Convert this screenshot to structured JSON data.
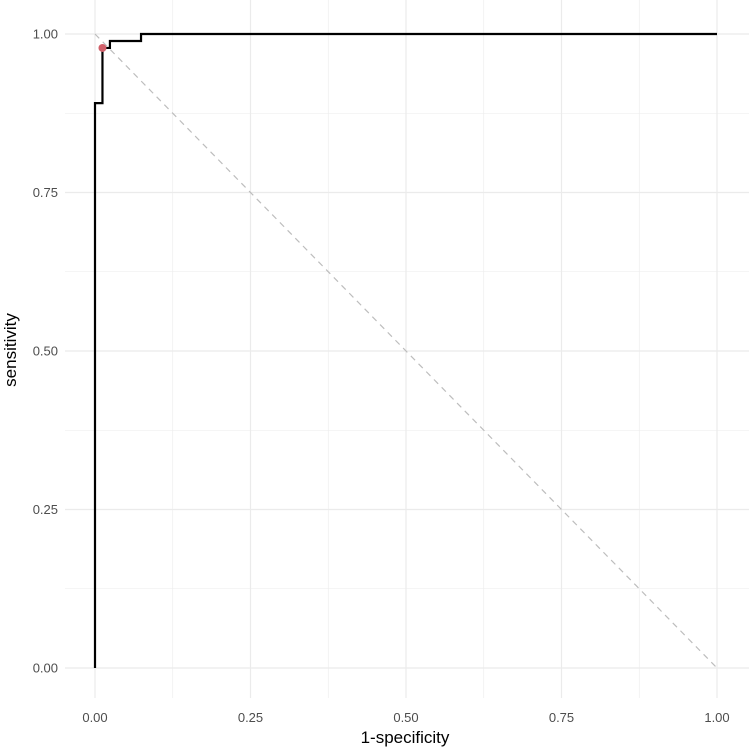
{
  "chart_data": {
    "type": "line",
    "title": "",
    "xlabel": "1-specificity",
    "ylabel": "sensitivity",
    "xlim": [
      0,
      1
    ],
    "ylim": [
      0,
      1
    ],
    "x_ticks": [
      0,
      0.25,
      0.5,
      0.75,
      1
    ],
    "x_tick_labels": [
      "0.00",
      "0.25",
      "0.50",
      "0.75",
      "1.00"
    ],
    "y_ticks": [
      0,
      0.25,
      0.5,
      0.75,
      1
    ],
    "y_tick_labels": [
      "0.00",
      "0.25",
      "0.50",
      "0.75",
      "1.00"
    ],
    "grid": true,
    "legend": "none",
    "series": [
      {
        "style": "step",
        "color": "#000000",
        "points": [
          [
            0,
            0
          ],
          [
            0,
            0.891
          ],
          [
            0.012,
            0.891
          ],
          [
            0.012,
            0.978
          ],
          [
            0.024,
            0.978
          ],
          [
            0.024,
            0.989
          ],
          [
            0.074,
            0.989
          ],
          [
            0.074,
            1.0
          ],
          [
            1.0,
            1.0
          ]
        ]
      },
      {
        "style": "dashed",
        "color": "#bdbdbd",
        "points": [
          [
            0,
            1
          ],
          [
            1,
            0
          ]
        ]
      }
    ],
    "highlight_point": {
      "x": 0.012,
      "y": 0.978,
      "color": "#d0606a"
    },
    "colors": {
      "grid": "#ebebeb",
      "tick_label": "#4d4d4d"
    }
  }
}
